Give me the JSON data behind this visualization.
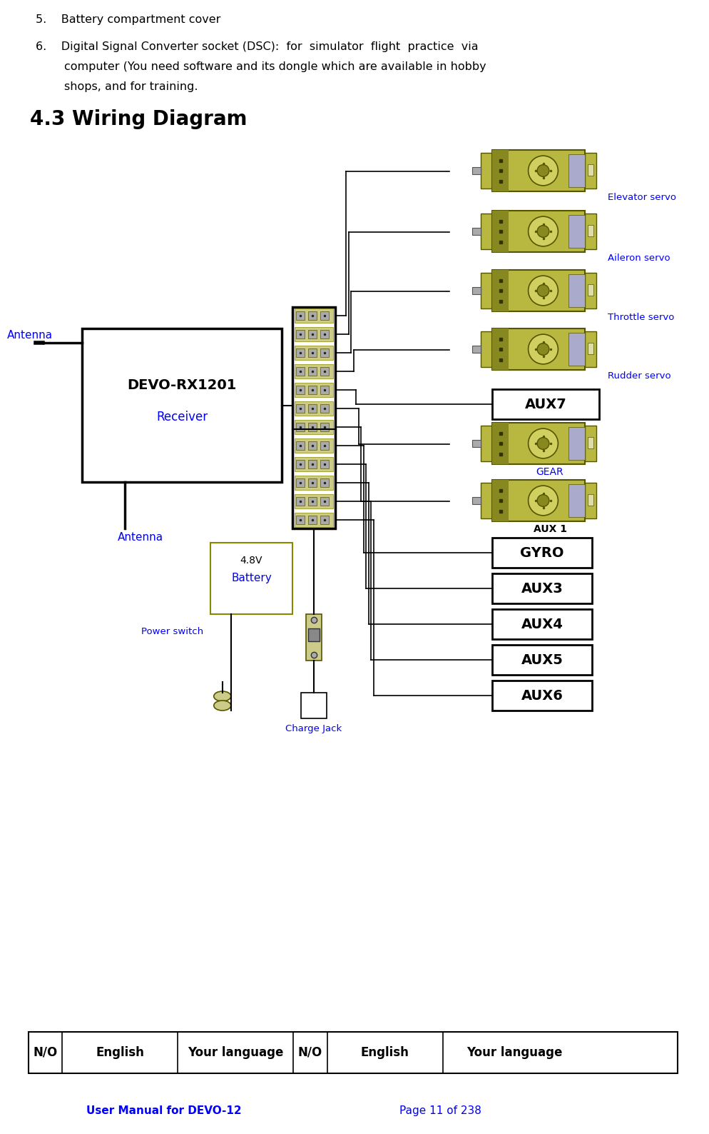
{
  "title_text": "4.3 Wiring Diagram",
  "item5_text": "5.    Battery compartment cover",
  "item6_line1": "6.    Digital Signal Converter socket (DSC):  for  simulator  flight  practice  via",
  "item6_line2": "       computer (You need software and its dongle which are available in hobby",
  "item6_line3": "       shops, and for training.",
  "receiver_label": "DEVO-RX1201",
  "receiver_sub": "Receiver",
  "antenna_label": "Antenna",
  "antenna_label2": "Antenna",
  "servo_labels": [
    "Elevator servo",
    "Aileron servo",
    "Throttle servo",
    "Rudder servo"
  ],
  "gear_label": "GEAR",
  "aux1_label": "AUX 1",
  "battery_top_text": "4.8V",
  "battery_bot_text": "Battery",
  "power_switch_label": "Power switch",
  "charge_jack_label": "Charge Jack",
  "blue_color": "#0000FF",
  "black_color": "#000000",
  "footer_left": "User Manual for DEVO-12",
  "footer_right": "Page 11 of 238",
  "table_headers": [
    "N/O",
    "English",
    "Your language",
    "N/O",
    "English",
    "Your language"
  ],
  "bg_color": "#FFFFFF",
  "servo_body_color": "#B8B840",
  "servo_edge_color": "#555500",
  "servo_hub_color": "#D0D060",
  "servo_dark_color": "#888820"
}
